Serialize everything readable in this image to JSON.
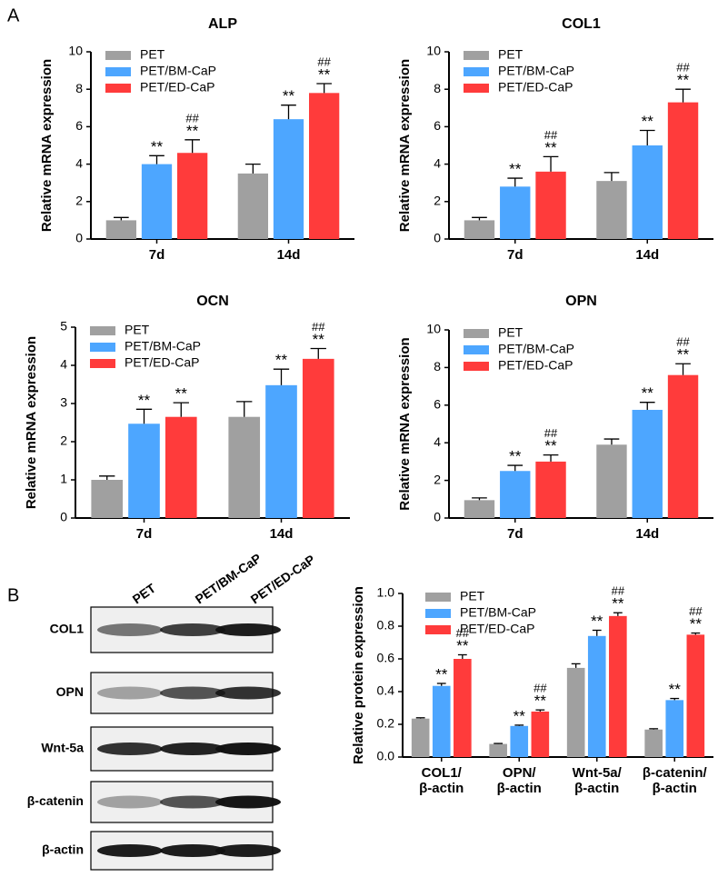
{
  "panel_labels": [
    "A",
    "B"
  ],
  "blot": {
    "lanes": [
      "PET",
      "PET/BM-CaP",
      "PET/ED-CaP"
    ],
    "rows": [
      "COL1",
      "OPN",
      "Wnt-5a",
      "β-catenin",
      "β-actin"
    ]
  },
  "chart_data": [
    {
      "type": "bar",
      "title": "ALP",
      "y_label": "Relative mRNA expression",
      "categories": [
        "7d",
        "14d"
      ],
      "ylim": [
        0,
        10
      ],
      "yticks": [
        0,
        2,
        4,
        6,
        8,
        10
      ],
      "legend": "upper left",
      "series": [
        {
          "name": "PET",
          "color": "#a0a0a0",
          "values": [
            1.0,
            3.5
          ],
          "errors": [
            0.15,
            0.5
          ],
          "annotations": [
            null,
            null
          ]
        },
        {
          "name": "PET/BM-CaP",
          "color": "#4da6ff",
          "values": [
            4.0,
            6.4
          ],
          "errors": [
            0.45,
            0.75
          ],
          "annotations": [
            [
              "**"
            ],
            [
              "**"
            ]
          ]
        },
        {
          "name": "PET/ED-CaP",
          "color": "#ff3b3b",
          "values": [
            4.6,
            7.8
          ],
          "errors": [
            0.7,
            0.5
          ],
          "annotations": [
            [
              "##",
              "**"
            ],
            [
              "##",
              "**"
            ]
          ]
        }
      ]
    },
    {
      "type": "bar",
      "title": "COL1",
      "y_label": "Relative mRNA expression",
      "categories": [
        "7d",
        "14d"
      ],
      "ylim": [
        0,
        10
      ],
      "yticks": [
        0,
        2,
        4,
        6,
        8,
        10
      ],
      "legend": "upper left",
      "series": [
        {
          "name": "PET",
          "color": "#a0a0a0",
          "values": [
            1.0,
            3.1
          ],
          "errors": [
            0.15,
            0.45
          ],
          "annotations": [
            null,
            null
          ]
        },
        {
          "name": "PET/BM-CaP",
          "color": "#4da6ff",
          "values": [
            2.8,
            5.0
          ],
          "errors": [
            0.45,
            0.8
          ],
          "annotations": [
            [
              "**"
            ],
            [
              "**"
            ]
          ]
        },
        {
          "name": "PET/ED-CaP",
          "color": "#ff3b3b",
          "values": [
            3.6,
            7.3
          ],
          "errors": [
            0.8,
            0.7
          ],
          "annotations": [
            [
              "##",
              "**"
            ],
            [
              "##",
              "**"
            ]
          ]
        }
      ]
    },
    {
      "type": "bar",
      "title": "OCN",
      "y_label": "Relative mRNA expression",
      "categories": [
        "7d",
        "14d"
      ],
      "ylim": [
        0,
        5
      ],
      "yticks": [
        0,
        1,
        2,
        3,
        4,
        5
      ],
      "legend": "upper left",
      "series": [
        {
          "name": "PET",
          "color": "#a0a0a0",
          "values": [
            1.0,
            2.65
          ],
          "errors": [
            0.1,
            0.4
          ],
          "annotations": [
            null,
            null
          ]
        },
        {
          "name": "PET/BM-CaP",
          "color": "#4da6ff",
          "values": [
            2.47,
            3.48
          ],
          "errors": [
            0.38,
            0.42
          ],
          "annotations": [
            [
              "**"
            ],
            [
              "**"
            ]
          ]
        },
        {
          "name": "PET/ED-CaP",
          "color": "#ff3b3b",
          "values": [
            2.65,
            4.17
          ],
          "errors": [
            0.37,
            0.27
          ],
          "annotations": [
            [
              "**"
            ],
            [
              "##",
              "**"
            ]
          ]
        }
      ]
    },
    {
      "type": "bar",
      "title": "OPN",
      "y_label": "Relative mRNA expression",
      "categories": [
        "7d",
        "14d"
      ],
      "ylim": [
        0,
        10
      ],
      "yticks": [
        0,
        2,
        4,
        6,
        8,
        10
      ],
      "legend": "upper left",
      "series": [
        {
          "name": "PET",
          "color": "#a0a0a0",
          "values": [
            0.95,
            3.9
          ],
          "errors": [
            0.12,
            0.3
          ],
          "annotations": [
            null,
            null
          ]
        },
        {
          "name": "PET/BM-CaP",
          "color": "#4da6ff",
          "values": [
            2.5,
            5.75
          ],
          "errors": [
            0.3,
            0.4
          ],
          "annotations": [
            [
              "**"
            ],
            [
              "**"
            ]
          ]
        },
        {
          "name": "PET/ED-CaP",
          "color": "#ff3b3b",
          "values": [
            3.0,
            7.6
          ],
          "errors": [
            0.35,
            0.6
          ],
          "annotations": [
            [
              "##",
              "**"
            ],
            [
              "##",
              "**"
            ]
          ]
        }
      ]
    },
    {
      "type": "bar",
      "y_label": "Relative protein expression",
      "categories": [
        "COL1/\nβ-actin",
        "OPN/\nβ-actin",
        "Wnt-5a/\nβ-actin",
        "β-catenin/\nβ-actin"
      ],
      "ylim": [
        0,
        1.0
      ],
      "yticks": [
        {
          "value": 0,
          "label": "0.0"
        },
        0.2,
        0.4,
        0.6,
        0.8,
        {
          "value": 1.0,
          "label": "1.0"
        }
      ],
      "legend": "upper left",
      "series": [
        {
          "name": "PET",
          "color": "#a0a0a0",
          "values": [
            0.235,
            0.08,
            0.545,
            0.168
          ],
          "errors": [
            0.005,
            0.003,
            0.025,
            0.005
          ],
          "annotations": [
            null,
            null,
            null,
            null
          ]
        },
        {
          "name": "PET/BM-CaP",
          "color": "#4da6ff",
          "values": [
            0.435,
            0.19,
            0.74,
            0.348
          ],
          "errors": [
            0.015,
            0.005,
            0.035,
            0.01
          ],
          "annotations": [
            [
              "**"
            ],
            [
              "**"
            ],
            [
              "**"
            ],
            [
              "**"
            ]
          ]
        },
        {
          "name": "PET/ED-CaP",
          "color": "#ff3b3b",
          "values": [
            0.6,
            0.278,
            0.862,
            0.748
          ],
          "errors": [
            0.025,
            0.01,
            0.02,
            0.01
          ],
          "annotations": [
            [
              "##",
              "**"
            ],
            [
              "##",
              "**"
            ],
            [
              "##",
              "**"
            ],
            [
              "##",
              "**"
            ]
          ]
        }
      ]
    }
  ]
}
